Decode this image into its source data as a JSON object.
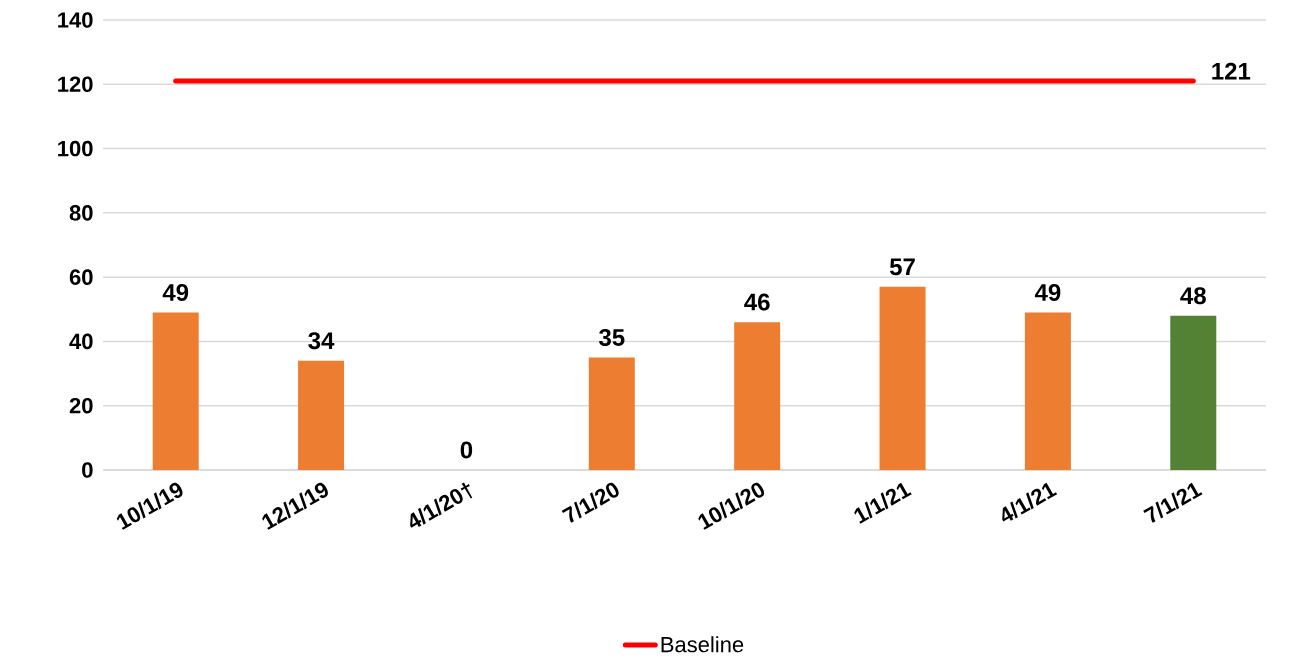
{
  "chart_data": {
    "type": "bar",
    "categories": [
      "10/1/19",
      "12/1/19",
      "4/1/20†",
      "7/1/20",
      "10/1/20",
      "1/1/21",
      "4/1/21",
      "7/1/21"
    ],
    "series": [
      {
        "colors": [
          "#ed7d31",
          "#ed7d31",
          "#ed7d31",
          "#ed7d31",
          "#ed7d31",
          "#ed7d31",
          "#ed7d31",
          "#548235"
        ],
        "values": [
          49,
          34,
          0,
          35,
          46,
          57,
          49,
          48
        ],
        "value_labels": [
          "49",
          "34",
          "0",
          "35",
          "46",
          "57",
          "49",
          "48"
        ]
      },
      {
        "type": "line",
        "name": "Baseline",
        "color": "#ff0000",
        "values": [
          121,
          121,
          121,
          121,
          121,
          121,
          121,
          121
        ],
        "value_labels": [
          null,
          null,
          null,
          null,
          null,
          null,
          null,
          "121"
        ]
      }
    ],
    "ylim": [
      0,
      140
    ],
    "yticks": [
      0,
      20,
      40,
      60,
      80,
      100,
      120,
      140
    ],
    "grid": "y",
    "legend": "bottom"
  }
}
